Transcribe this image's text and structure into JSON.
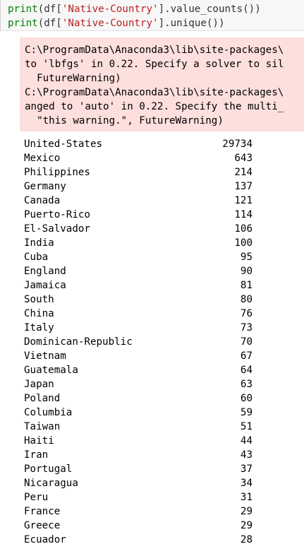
{
  "code_cell": {
    "line1": {
      "fn": "print",
      "pre": "(df[",
      "str": "'Native-Country'",
      "post": "].value_counts())"
    },
    "line2": {
      "fn": "print",
      "pre": "(df[",
      "str": "'Native-Country'",
      "post": "].unique())"
    }
  },
  "stderr": {
    "lines": [
      "C:\\ProgramData\\Anaconda3\\lib\\site-packages\\",
      "to 'lbfgs' in 0.22. Specify a solver to sil",
      "  FutureWarning)",
      "C:\\ProgramData\\Anaconda3\\lib\\site-packages\\",
      "anged to 'auto' in 0.22. Specify the multi_",
      "  \"this warning.\", FutureWarning)"
    ]
  },
  "value_counts": [
    {
      "country": "United-States",
      "count": "29734"
    },
    {
      "country": "Mexico",
      "count": "643"
    },
    {
      "country": "Philippines",
      "count": "214"
    },
    {
      "country": "Germany",
      "count": "137"
    },
    {
      "country": "Canada",
      "count": "121"
    },
    {
      "country": "Puerto-Rico",
      "count": "114"
    },
    {
      "country": "El-Salvador",
      "count": "106"
    },
    {
      "country": "India",
      "count": "100"
    },
    {
      "country": "Cuba",
      "count": "95"
    },
    {
      "country": "England",
      "count": "90"
    },
    {
      "country": "Jamaica",
      "count": "81"
    },
    {
      "country": "South",
      "count": "80"
    },
    {
      "country": "China",
      "count": "76"
    },
    {
      "country": "Italy",
      "count": "73"
    },
    {
      "country": "Dominican-Republic",
      "count": "70"
    },
    {
      "country": "Vietnam",
      "count": "67"
    },
    {
      "country": "Guatemala",
      "count": "64"
    },
    {
      "country": "Japan",
      "count": "63"
    },
    {
      "country": "Poland",
      "count": "60"
    },
    {
      "country": "Columbia",
      "count": "59"
    },
    {
      "country": "Taiwan",
      "count": "51"
    },
    {
      "country": "Haiti",
      "count": "44"
    },
    {
      "country": "Iran",
      "count": "43"
    },
    {
      "country": "Portugal",
      "count": "37"
    },
    {
      "country": "Nicaragua",
      "count": "34"
    },
    {
      "country": "Peru",
      "count": "31"
    },
    {
      "country": "France",
      "count": "29"
    },
    {
      "country": "Greece",
      "count": "29"
    },
    {
      "country": "Ecuador",
      "count": "28"
    }
  ],
  "colors": {
    "keyword": "#008000",
    "string": "#ba2121",
    "stderr_bg": "#fddfdd",
    "code_bg": "#f7f7f7"
  }
}
